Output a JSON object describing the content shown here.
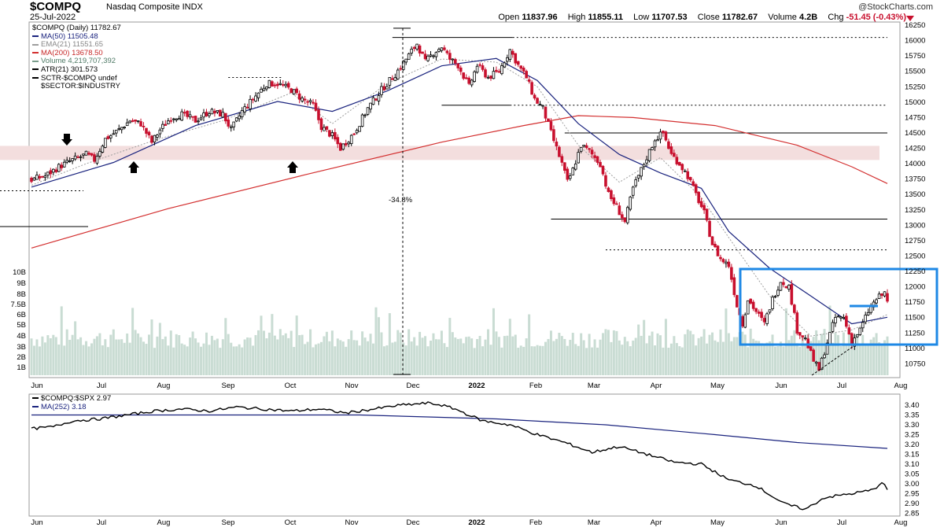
{
  "header": {
    "ticker": "$COMPQ",
    "name": "Nasdaq Composite INDX",
    "date": "25-Jul-2022",
    "brand": "@StockCharts.com",
    "open_label": "Open",
    "open": "11837.96",
    "high_label": "High",
    "high": "11855.11",
    "low_label": "Low",
    "low": "11707.53",
    "close_label": "Close",
    "close": "11782.67",
    "volume_label": "Volume",
    "volume": "4.2B",
    "chg_label": "Chg",
    "chg": "-51.45 (-0.43%)"
  },
  "legend": {
    "title": "$COMPQ (Daily) 11782.67",
    "ma50": "MA(50) 11505.48",
    "ema21": "EMA(21) 11551.65",
    "ma200": "MA(200) 13678.50",
    "volume": "Volume 4,219,707,392",
    "atr": "ATR(21) 301.573",
    "sctr": "SCTR-$COMPQ undef",
    "sector": "$SECTOR:$INDUSTRY"
  },
  "legend2": {
    "title": "$COMPQ:$SPX 2.97",
    "ma": "MA(252) 3.18"
  },
  "colors": {
    "up": "#000000",
    "down": "#c8102e",
    "ma50": "#1a237e",
    "ma200": "#d32f2f",
    "ema21": "#9e9e9e",
    "volume": "#c9dcd3",
    "box": "#1e88e5",
    "band": "#f3dede"
  },
  "annotation": {
    "drawdown": "-34.8%"
  },
  "chart_data": [
    {
      "type": "candlestick",
      "title": "$COMPQ (Daily) 11782.67",
      "x_labels": [
        "Jun",
        "Jul",
        "Aug",
        "Sep",
        "Oct",
        "Nov",
        "Dec",
        "2022",
        "Feb",
        "Mar",
        "Apr",
        "May",
        "Jun",
        "Jul",
        "Aug"
      ],
      "y_ticks": [
        16250,
        16000,
        15750,
        15500,
        15250,
        15000,
        14750,
        14500,
        14250,
        14000,
        13750,
        13500,
        13250,
        13000,
        12750,
        12500,
        12250,
        12000,
        11750,
        11500,
        11250,
        11000,
        10750
      ],
      "ylim": [
        10500,
        16250
      ],
      "volume_ticks": [
        "10B",
        "9B",
        "8B",
        "7.5B",
        "6B",
        "5B",
        "4B",
        "3B",
        "2B",
        "1B"
      ],
      "close_path": [
        [
          0,
          13740
        ],
        [
          5,
          13800
        ],
        [
          10,
          13950
        ],
        [
          15,
          14060
        ],
        [
          20,
          14150
        ],
        [
          23,
          14060
        ],
        [
          27,
          14400
        ],
        [
          32,
          14550
        ],
        [
          36,
          14700
        ],
        [
          40,
          14650
        ],
        [
          44,
          14350
        ],
        [
          47,
          14550
        ],
        [
          51,
          14750
        ],
        [
          55,
          14800
        ],
        [
          60,
          14700
        ],
        [
          65,
          14850
        ],
        [
          70,
          14800
        ],
        [
          73,
          14550
        ],
        [
          77,
          14850
        ],
        [
          82,
          15100
        ],
        [
          86,
          15300
        ],
        [
          90,
          15300
        ],
        [
          95,
          15200
        ],
        [
          99,
          15050
        ],
        [
          103,
          14950
        ],
        [
          106,
          14600
        ],
        [
          110,
          14450
        ],
        [
          113,
          14250
        ],
        [
          118,
          14500
        ],
        [
          123,
          14900
        ],
        [
          128,
          15200
        ],
        [
          133,
          15450
        ],
        [
          137,
          15700
        ],
        [
          141,
          15950
        ],
        [
          144,
          15650
        ],
        [
          147,
          15800
        ],
        [
          150,
          15900
        ],
        [
          153,
          15700
        ],
        [
          156,
          15600
        ],
        [
          160,
          15250
        ],
        [
          163,
          15600
        ],
        [
          167,
          15400
        ],
        [
          171,
          15500
        ],
        [
          175,
          15850
        ],
        [
          178,
          15600
        ],
        [
          181,
          15400
        ],
        [
          184,
          15050
        ],
        [
          187,
          14900
        ],
        [
          190,
          14500
        ],
        [
          194,
          14000
        ],
        [
          196,
          13700
        ],
        [
          198,
          13900
        ],
        [
          201,
          14300
        ],
        [
          204,
          14200
        ],
        [
          208,
          14000
        ],
        [
          211,
          13500
        ],
        [
          214,
          13300
        ],
        [
          217,
          13050
        ],
        [
          220,
          13600
        ],
        [
          224,
          14000
        ],
        [
          228,
          14400
        ],
        [
          231,
          14500
        ],
        [
          234,
          14150
        ],
        [
          237,
          14000
        ],
        [
          240,
          13800
        ],
        [
          243,
          13500
        ],
        [
          246,
          13200
        ],
        [
          249,
          12700
        ],
        [
          252,
          12450
        ],
        [
          255,
          12350
        ],
        [
          258,
          11700
        ],
        [
          260,
          11400
        ],
        [
          262,
          11800
        ],
        [
          265,
          11600
        ],
        [
          268,
          11400
        ],
        [
          271,
          11800
        ],
        [
          274,
          12100
        ],
        [
          277,
          12000
        ],
        [
          280,
          11300
        ],
        [
          283,
          11150
        ],
        [
          286,
          10800
        ],
        [
          288,
          10650
        ],
        [
          291,
          11100
        ],
        [
          294,
          11500
        ],
        [
          297,
          11500
        ],
        [
          300,
          11100
        ],
        [
          303,
          11300
        ],
        [
          306,
          11600
        ],
        [
          309,
          11800
        ],
        [
          312,
          11900
        ],
        [
          313,
          11783
        ]
      ],
      "ma50_path": [
        [
          0,
          13620
        ],
        [
          30,
          14020
        ],
        [
          60,
          14620
        ],
        [
          90,
          15010
        ],
        [
          110,
          14850
        ],
        [
          130,
          15180
        ],
        [
          150,
          15590
        ],
        [
          170,
          15710
        ],
        [
          185,
          15350
        ],
        [
          200,
          14650
        ],
        [
          215,
          14150
        ],
        [
          230,
          13850
        ],
        [
          245,
          13600
        ],
        [
          255,
          12900
        ],
        [
          270,
          12300
        ],
        [
          285,
          11850
        ],
        [
          300,
          11400
        ],
        [
          313,
          11505
        ]
      ],
      "ma200_path": [
        [
          0,
          12630
        ],
        [
          50,
          13270
        ],
        [
          100,
          13820
        ],
        [
          150,
          14350
        ],
        [
          180,
          14620
        ],
        [
          200,
          14780
        ],
        [
          220,
          14750
        ],
        [
          250,
          14620
        ],
        [
          280,
          14300
        ],
        [
          300,
          13950
        ],
        [
          313,
          13678
        ]
      ],
      "ema21_path": [
        [
          0,
          13650
        ],
        [
          20,
          14000
        ],
        [
          45,
          14380
        ],
        [
          70,
          14700
        ],
        [
          95,
          15150
        ],
        [
          110,
          14650
        ],
        [
          130,
          15300
        ],
        [
          150,
          15700
        ],
        [
          170,
          15650
        ],
        [
          185,
          15250
        ],
        [
          200,
          14300
        ],
        [
          215,
          13700
        ],
        [
          230,
          14100
        ],
        [
          245,
          13450
        ],
        [
          255,
          12800
        ],
        [
          270,
          11850
        ],
        [
          285,
          11200
        ],
        [
          300,
          11300
        ],
        [
          313,
          11550
        ]
      ],
      "levels": [
        {
          "value": 16050,
          "from": 132,
          "to": 176,
          "style": "solid"
        },
        {
          "value": 16050,
          "from": 176,
          "to": 313,
          "style": "dotted"
        },
        {
          "value": 15400,
          "from": 72,
          "to": 92,
          "style": "dotted"
        },
        {
          "value": 14950,
          "from": 150,
          "to": 175,
          "style": "solid"
        },
        {
          "value": 14950,
          "from": 175,
          "to": 313,
          "style": "dotted"
        },
        {
          "value": 14500,
          "from": 195,
          "to": 313,
          "style": "solid"
        },
        {
          "value": 13100,
          "from": 190,
          "to": 313,
          "style": "solid"
        },
        {
          "value": 12600,
          "from": 210,
          "to": 313,
          "style": "dotted"
        },
        {
          "value": 13560,
          "from": -10,
          "to": 19,
          "style": "dotted"
        }
      ]
    },
    {
      "type": "line",
      "title": "$COMPQ:$SPX 2.97",
      "series": [
        {
          "name": "$COMPQ:$SPX"
        },
        {
          "name": "MA(252)"
        }
      ],
      "x_labels": [
        "Jun",
        "Jul",
        "Aug",
        "Sep",
        "Oct",
        "Nov",
        "Dec",
        "2022",
        "Feb",
        "Mar",
        "Apr",
        "May",
        "Jun",
        "Jul",
        "Aug"
      ],
      "y_ticks": [
        3.4,
        3.35,
        3.3,
        3.25,
        3.2,
        3.15,
        3.1,
        3.05,
        3.0,
        2.95,
        2.9,
        2.85
      ],
      "ylim": [
        2.84,
        3.42
      ],
      "ratio_path": [
        [
          0,
          3.28
        ],
        [
          8,
          3.29
        ],
        [
          15,
          3.32
        ],
        [
          25,
          3.33
        ],
        [
          35,
          3.35
        ],
        [
          45,
          3.37
        ],
        [
          55,
          3.38
        ],
        [
          65,
          3.37
        ],
        [
          75,
          3.39
        ],
        [
          85,
          3.38
        ],
        [
          95,
          3.37
        ],
        [
          105,
          3.38
        ],
        [
          115,
          3.36
        ],
        [
          125,
          3.38
        ],
        [
          135,
          3.4
        ],
        [
          145,
          3.41
        ],
        [
          150,
          3.4
        ],
        [
          155,
          3.38
        ],
        [
          165,
          3.32
        ],
        [
          175,
          3.3
        ],
        [
          185,
          3.25
        ],
        [
          195,
          3.21
        ],
        [
          205,
          3.16
        ],
        [
          215,
          3.19
        ],
        [
          225,
          3.15
        ],
        [
          235,
          3.11
        ],
        [
          245,
          3.1
        ],
        [
          255,
          3.02
        ],
        [
          265,
          2.99
        ],
        [
          275,
          2.9
        ],
        [
          283,
          2.87
        ],
        [
          290,
          2.93
        ],
        [
          300,
          2.95
        ],
        [
          308,
          2.97
        ],
        [
          311,
          3.01
        ],
        [
          313,
          2.97
        ]
      ],
      "ma_path": [
        [
          0,
          3.35
        ],
        [
          60,
          3.35
        ],
        [
          120,
          3.35
        ],
        [
          170,
          3.33
        ],
        [
          210,
          3.3
        ],
        [
          250,
          3.25
        ],
        [
          280,
          3.21
        ],
        [
          313,
          3.18
        ]
      ]
    }
  ]
}
